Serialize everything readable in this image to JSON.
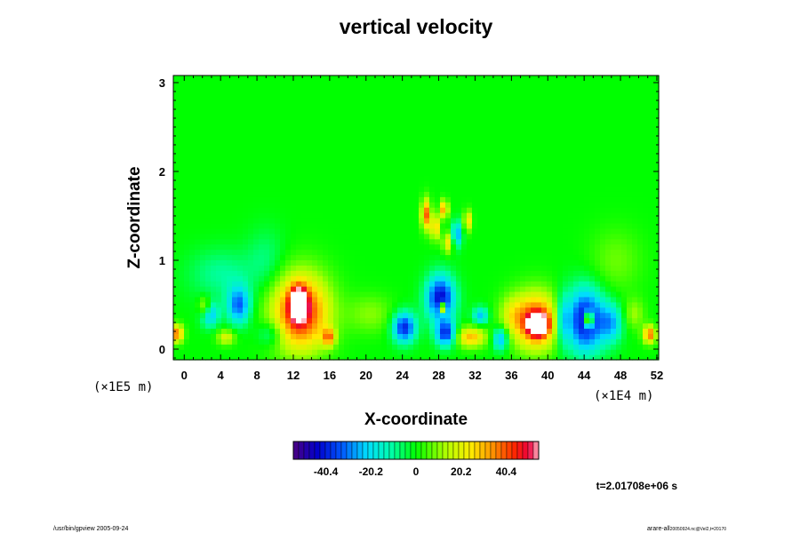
{
  "chart_data": {
    "type": "heatmap",
    "title": "vertical velocity",
    "xlabel": "X-coordinate",
    "ylabel": "Z-coordinate",
    "x_unit": "(×1E4 m)",
    "y_unit": "(×1E5 m)",
    "xlim": [
      -1.2,
      52.2
    ],
    "ylim": [
      -0.12,
      3.08
    ],
    "x_ticks": [
      "0",
      "4",
      "8",
      "12",
      "16",
      "20",
      "24",
      "28",
      "32",
      "36",
      "40",
      "44",
      "48",
      "52"
    ],
    "y_ticks": [
      "0",
      "1",
      "2",
      "3"
    ],
    "colorbar": {
      "ticks": [
        "-40.4",
        "-20.2",
        "0",
        "20.2",
        "40.4"
      ],
      "tick_values": [
        -40.4,
        -20.2,
        0,
        20.2,
        40.4
      ],
      "range": [
        -55,
        55
      ],
      "low_color": "#4b0082",
      "high_color": "#ffb6c1"
    },
    "features": [
      {
        "x": 12.8,
        "z": 0.42,
        "value": 48,
        "sx": 2.2,
        "sz": 0.3
      },
      {
        "x": 12.6,
        "z": 0.52,
        "value": 60,
        "sx": 0.6,
        "sz": 0.12
      },
      {
        "x": 38.7,
        "z": 0.32,
        "value": 46,
        "sx": 1.8,
        "sz": 0.22
      },
      {
        "x": 38.9,
        "z": 0.28,
        "value": 60,
        "sx": 0.7,
        "sz": 0.08
      },
      {
        "x": 44.1,
        "z": 0.33,
        "value": -45,
        "sx": 1.5,
        "sz": 0.25
      },
      {
        "x": 44.5,
        "z": 0.34,
        "value": 60,
        "sx": 0.35,
        "sz": 0.06
      },
      {
        "x": 6.0,
        "z": 0.5,
        "value": -32,
        "sx": 0.9,
        "sz": 0.15
      },
      {
        "x": 2.8,
        "z": 0.4,
        "value": -26,
        "sx": 0.7,
        "sz": 0.1
      },
      {
        "x": 28.2,
        "z": 0.58,
        "value": -44,
        "sx": 1.1,
        "sz": 0.18
      },
      {
        "x": 28.4,
        "z": 0.47,
        "value": 60,
        "sx": 0.25,
        "sz": 0.04
      },
      {
        "x": 24.2,
        "z": 0.25,
        "value": -40,
        "sx": 0.9,
        "sz": 0.12
      },
      {
        "x": 28.8,
        "z": 0.18,
        "value": -38,
        "sx": 0.8,
        "sz": 0.1
      },
      {
        "x": 31.5,
        "z": 0.14,
        "value": 30,
        "sx": 1.2,
        "sz": 0.08
      },
      {
        "x": 34.8,
        "z": 0.12,
        "value": -28,
        "sx": 0.6,
        "sz": 0.09
      },
      {
        "x": 41.6,
        "z": 0.33,
        "value": -22,
        "sx": 0.5,
        "sz": 0.2
      },
      {
        "x": 47.0,
        "z": 0.3,
        "value": -22,
        "sx": 0.9,
        "sz": 0.15
      },
      {
        "x": 51.2,
        "z": 0.17,
        "value": 38,
        "sx": 0.5,
        "sz": 0.07
      },
      {
        "x": -0.8,
        "z": 0.18,
        "value": 38,
        "sx": 0.5,
        "sz": 0.07
      },
      {
        "x": 4.6,
        "z": 0.14,
        "value": 20,
        "sx": 0.7,
        "sz": 0.06
      },
      {
        "x": 2.3,
        "z": 0.48,
        "value": 22,
        "sx": 0.5,
        "sz": 0.08
      },
      {
        "x": 15.9,
        "z": 0.14,
        "value": 30,
        "sx": 0.5,
        "sz": 0.07
      },
      {
        "x": 9.5,
        "z": 0.18,
        "value": -14,
        "sx": 1.0,
        "sz": 0.1
      },
      {
        "x": 26.6,
        "z": 1.52,
        "value": 40,
        "sx": 0.35,
        "sz": 0.12
      },
      {
        "x": 27.6,
        "z": 1.38,
        "value": 34,
        "sx": 0.3,
        "sz": 0.1
      },
      {
        "x": 28.6,
        "z": 1.58,
        "value": 36,
        "sx": 0.3,
        "sz": 0.07
      },
      {
        "x": 30.0,
        "z": 1.3,
        "value": -28,
        "sx": 0.4,
        "sz": 0.1
      },
      {
        "x": 31.2,
        "z": 1.45,
        "value": 28,
        "sx": 0.3,
        "sz": 0.08
      },
      {
        "x": 29.0,
        "z": 1.2,
        "value": 24,
        "sx": 0.4,
        "sz": 0.08
      },
      {
        "x": 32.6,
        "z": 0.38,
        "value": -24,
        "sx": 0.6,
        "sz": 0.07
      },
      {
        "x": 20.5,
        "z": 0.4,
        "value": 10,
        "sx": 1.8,
        "sz": 0.15
      },
      {
        "x": 36.0,
        "z": 0.4,
        "value": 12,
        "sx": 1.0,
        "sz": 0.15
      },
      {
        "x": 49.5,
        "z": 0.4,
        "value": 12,
        "sx": 0.8,
        "sz": 0.12
      },
      {
        "x": 4.0,
        "z": 0.85,
        "value": -10,
        "sx": 2.5,
        "sz": 0.2
      },
      {
        "x": 47.5,
        "z": 1.0,
        "value": 8,
        "sx": 2.0,
        "sz": 0.25
      },
      {
        "x": 9.0,
        "z": 1.0,
        "value": -8,
        "sx": 1.5,
        "sz": 0.25
      }
    ]
  },
  "footer": {
    "time_label": "t=2.01708e+06 s",
    "left_note": "/usr/bin/gpview 2005-09-24",
    "right_note": "arare-all",
    "right_note_sub": "20050924.nc@Vel2,t=20170"
  }
}
